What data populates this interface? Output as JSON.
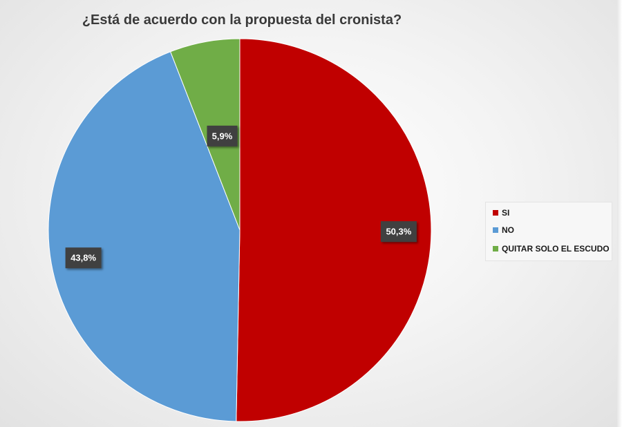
{
  "chart_data": {
    "type": "pie",
    "title": "¿Está de acuerdo con la propuesta del cronista?",
    "slices": [
      {
        "label": "SI",
        "value": 50.3,
        "data_label": "50,3%",
        "color": "#c00000"
      },
      {
        "label": "NO",
        "value": 43.8,
        "data_label": "43,8%",
        "color": "#5b9bd5"
      },
      {
        "label": "QUITAR SOLO EL ESCUDO",
        "value": 5.9,
        "data_label": "5,9%",
        "color": "#70ad47"
      }
    ],
    "legend_position": "right",
    "data_label_style": {
      "background": "#404040",
      "color": "#ffffff"
    }
  }
}
